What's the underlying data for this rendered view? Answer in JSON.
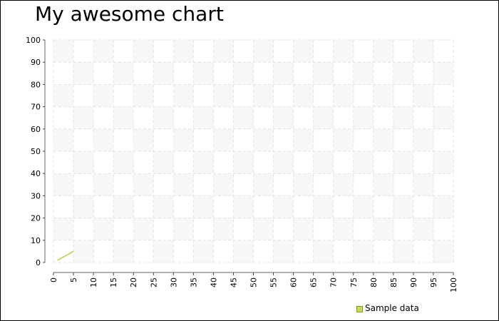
{
  "chart_data": {
    "type": "line",
    "title": "My awesome chart",
    "xlabel": "",
    "ylabel": "",
    "xlim": [
      0,
      100
    ],
    "ylim": [
      0,
      100
    ],
    "xticks": [
      0,
      5,
      10,
      15,
      20,
      25,
      30,
      35,
      40,
      45,
      50,
      55,
      60,
      65,
      70,
      75,
      80,
      85,
      90,
      95,
      100
    ],
    "yticks": [
      0,
      10,
      20,
      30,
      40,
      50,
      60,
      70,
      80,
      90,
      100
    ],
    "grid": true,
    "legend_placement": "bottom-right",
    "series": [
      {
        "name": "Sample data",
        "color": "#c8d96a",
        "x": [
          1,
          2,
          3,
          4,
          5
        ],
        "y": [
          1,
          2,
          3,
          4,
          5
        ]
      }
    ]
  }
}
